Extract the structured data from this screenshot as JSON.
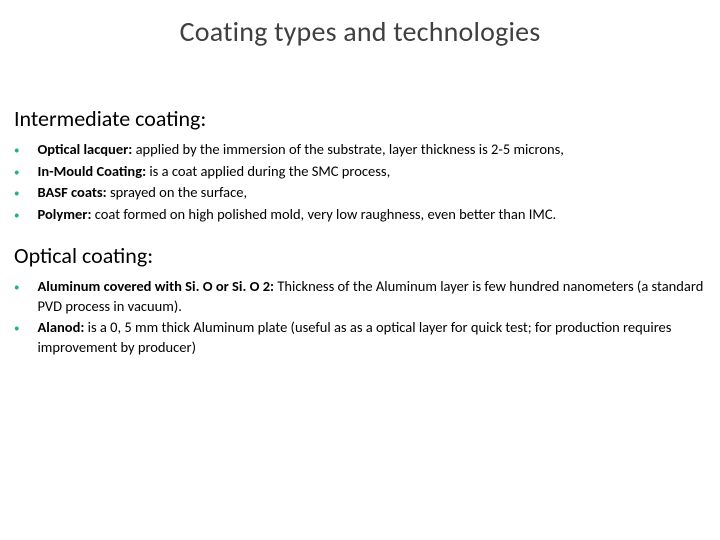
{
  "title": "Coating types and technologies",
  "bullet_color": "#1fb090",
  "bullet_style": "color:#1fb090",
  "text_color": "#000000",
  "title_color": "#404040",
  "background_color": "#ffffff",
  "title_fontsize": 28,
  "heading_fontsize": 22,
  "body_fontsize": 14.5,
  "sections": [
    {
      "heading": "Intermediate coating:",
      "items": [
        {
          "bold": "Optical lacquer: ",
          "rest": "applied by the immersion of the substrate, layer thickness is 2-5 microns,"
        },
        {
          "bold": "In-Mould Coating: ",
          "rest": "is a coat applied during the SMC process,"
        },
        {
          "bold": "BASF coats: ",
          "rest": "sprayed on the surface,"
        },
        {
          "bold": "Polymer: ",
          "rest": " coat formed on high polished mold, very low raughness, even better than IMC."
        }
      ]
    },
    {
      "heading": "Optical coating:",
      "items": [
        {
          "bold": "Aluminum covered with Si. O or Si. O 2: ",
          "rest": "Thickness of the Aluminum layer is few hundred nanometers (a standard PVD process in vacuum)."
        },
        {
          "bold": "Alanod: ",
          "rest": "is a 0, 5 mm thick Aluminum plate (useful as as a optical layer for quick test; for production requires improvement by producer)"
        }
      ]
    }
  ]
}
